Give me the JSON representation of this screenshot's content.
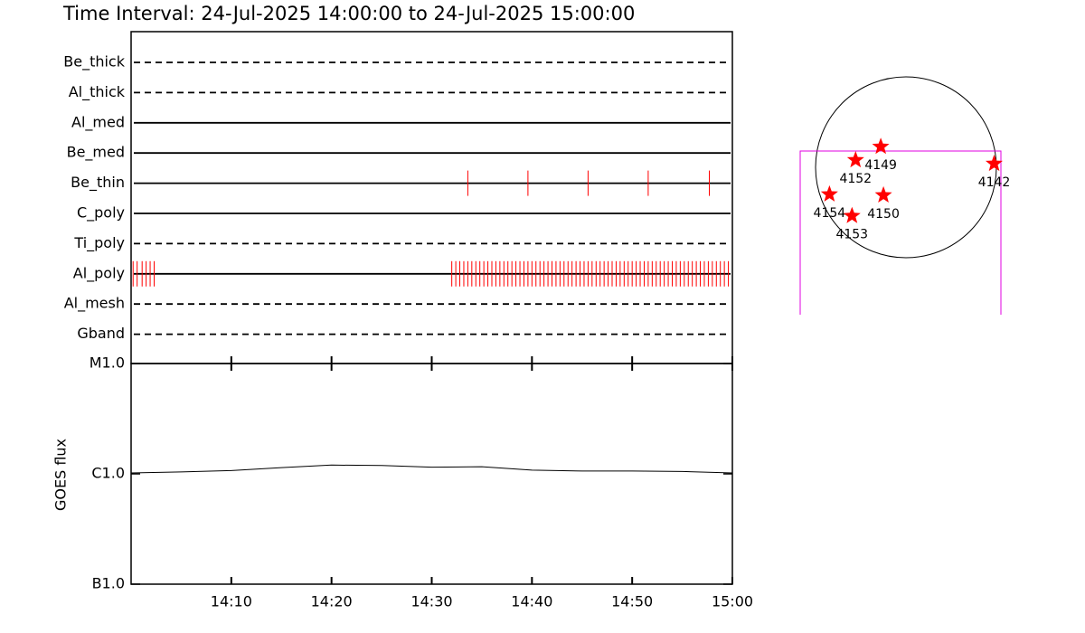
{
  "title": "Time Interval: 24-Jul-2025 14:00:00 to 24-Jul-2025 15:00:00",
  "chart_data": [
    {
      "type": "timeline",
      "color": "#ff0000",
      "xlim": [
        0,
        60
      ],
      "xticks": [
        10,
        20,
        30,
        40,
        50,
        60
      ],
      "rows": [
        {
          "name": "Be_thick",
          "style": "dashed",
          "events": []
        },
        {
          "name": "Al_thick",
          "style": "dashed",
          "events": []
        },
        {
          "name": "Al_med",
          "style": "solid",
          "events": []
        },
        {
          "name": "Be_med",
          "style": "solid",
          "events": []
        },
        {
          "name": "Be_thin",
          "style": "solid",
          "events": [
            33.6,
            39.6,
            45.6,
            51.6,
            57.7
          ]
        },
        {
          "name": "C_poly",
          "style": "solid",
          "events": []
        },
        {
          "name": "Ti_poly",
          "style": "dashed",
          "events": []
        },
        {
          "name": "Al_poly",
          "style": "solid",
          "events": [
            0.2,
            0.6,
            1.1,
            1.5,
            1.9,
            2.3,
            32.0,
            32.4,
            32.8,
            33.2,
            33.6,
            34.0,
            34.4,
            34.8,
            35.2,
            35.6,
            36.0,
            36.4,
            36.8,
            37.2,
            37.6,
            38.0,
            38.4,
            38.8,
            39.2,
            39.6,
            40.0,
            40.4,
            40.8,
            41.2,
            41.6,
            42.0,
            42.4,
            42.8,
            43.2,
            43.6,
            44.0,
            44.4,
            44.8,
            45.2,
            45.6,
            46.0,
            46.4,
            46.8,
            47.2,
            47.6,
            48.0,
            48.4,
            48.8,
            49.2,
            49.6,
            50.0,
            50.4,
            50.8,
            51.2,
            51.6,
            52.0,
            52.4,
            52.8,
            53.2,
            53.6,
            54.0,
            54.4,
            54.8,
            55.2,
            55.6,
            56.0,
            56.4,
            56.8,
            57.2,
            57.6,
            58.0,
            58.4,
            58.8,
            59.2,
            59.6
          ]
        },
        {
          "name": "Al_mesh",
          "style": "dashed",
          "events": []
        },
        {
          "name": "Gband",
          "style": "dashed",
          "events": []
        }
      ]
    },
    {
      "type": "line",
      "y_label": "GOES flux",
      "log_scale": true,
      "color": "#000000",
      "xlim": [
        0,
        60
      ],
      "xticks": [
        {
          "value": 10,
          "label": "14:10"
        },
        {
          "value": 20,
          "label": "14:20"
        },
        {
          "value": 30,
          "label": "14:30"
        },
        {
          "value": 40,
          "label": "14:40"
        },
        {
          "value": 50,
          "label": "14:50"
        },
        {
          "value": 60,
          "label": "15:00"
        }
      ],
      "ylim": [
        1e-07,
        1e-05
      ],
      "yticks": [
        {
          "value": 1e-07,
          "label": "B1.0"
        },
        {
          "value": 1e-06,
          "label": "C1.0"
        },
        {
          "value": 1e-05,
          "label": "M1.0"
        }
      ],
      "x": [
        0,
        5,
        10,
        15,
        20,
        25,
        30,
        35,
        40,
        45,
        50,
        55,
        60
      ],
      "values": [
        1.02e-06,
        1.04e-06,
        1.07e-06,
        1.14e-06,
        1.2e-06,
        1.19e-06,
        1.15e-06,
        1.16e-06,
        1.08e-06,
        1.06e-06,
        1.06e-06,
        1.05e-06,
        1.02e-06
      ]
    },
    {
      "type": "map",
      "color": "#ff0000",
      "xlim": [
        -1050,
        1050
      ],
      "ylim": [
        -1050,
        1050
      ],
      "labels": [
        "4149",
        "4152",
        "4142",
        "4154",
        "4150",
        "4153"
      ],
      "x": [
        -266,
        -532,
        931,
        -808,
        -238,
        -570
      ],
      "y": [
        218,
        76,
        38,
        -285,
        -295,
        -513
      ]
    }
  ]
}
